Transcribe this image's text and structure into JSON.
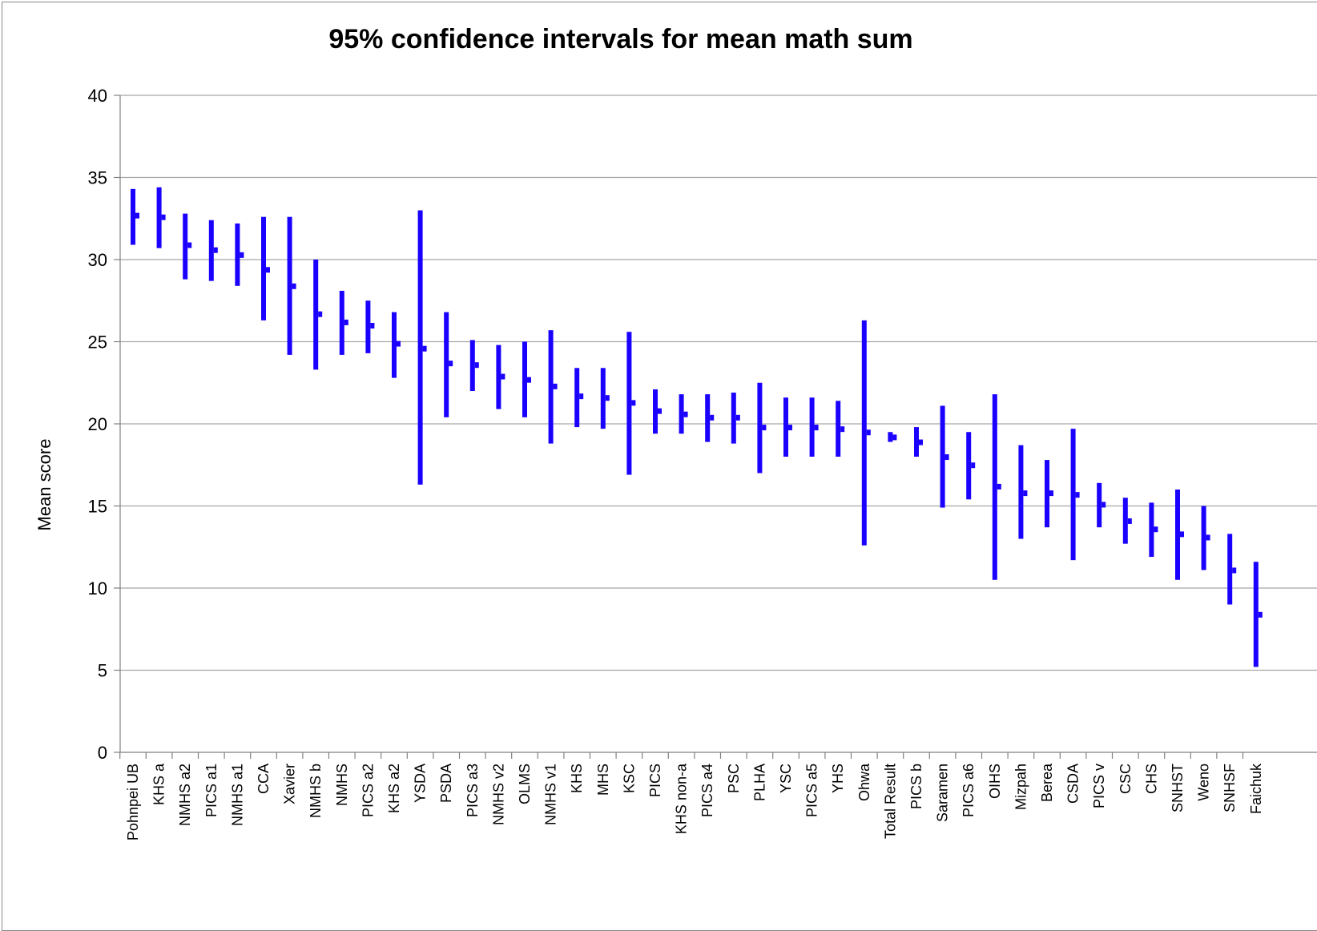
{
  "chart_data": {
    "type": "errorbar",
    "title": "95% confidence intervals for mean math sum",
    "ylabel": "Mean score",
    "xlabel": "",
    "ylim": [
      0,
      40
    ],
    "yticks": [
      0,
      5,
      10,
      15,
      20,
      25,
      30,
      35,
      40
    ],
    "grid": true,
    "legend": "none",
    "color": "#1a00ff",
    "categories": [
      "Pohnpei UB",
      "KHS a",
      "NMHS a2",
      "PICS a1",
      "NMHS a1",
      "CCA",
      "Xavier",
      "NMHS b",
      "NMHS",
      "PICS a2",
      "KHS a2",
      "YSDA",
      "PSDA",
      "PICS a3",
      "NMHS v2",
      "OLMS",
      "NMHS v1",
      "KHS",
      "MHS",
      "KSC",
      "PICS",
      "KHS non-a",
      "PICS a4",
      "PSC",
      "PLHA",
      "YSC",
      "PICS a5",
      "YHS",
      "Ohwa",
      "Total Result",
      "PICS b",
      "Saramen",
      "PICS a6",
      "OIHS",
      "Mizpah",
      "Berea",
      "CSDA",
      "PICS v",
      "CSC",
      "CHS",
      "SNHST",
      "Weno",
      "SNHSF",
      "Faichuk"
    ],
    "series": [
      {
        "stat": "upper",
        "values": [
          34.3,
          34.4,
          32.8,
          32.4,
          32.2,
          32.6,
          32.6,
          30.0,
          28.1,
          27.5,
          26.8,
          33.0,
          26.8,
          25.1,
          24.8,
          25.0,
          25.7,
          23.4,
          23.4,
          25.6,
          22.1,
          21.8,
          21.8,
          21.9,
          22.5,
          21.6,
          21.6,
          21.4,
          26.3,
          19.5,
          19.8,
          21.1,
          19.5,
          21.8,
          18.7,
          17.8,
          19.7,
          16.4,
          15.5,
          15.2,
          16.0,
          15.0,
          13.3,
          11.6
        ]
      },
      {
        "stat": "mean",
        "values": [
          32.7,
          32.6,
          30.9,
          30.6,
          30.3,
          29.4,
          28.4,
          26.7,
          26.2,
          26.0,
          24.9,
          24.6,
          23.7,
          23.6,
          22.9,
          22.7,
          22.3,
          21.7,
          21.6,
          21.3,
          20.8,
          20.6,
          20.4,
          20.4,
          19.8,
          19.8,
          19.8,
          19.7,
          19.5,
          19.2,
          18.9,
          18.0,
          17.5,
          16.2,
          15.8,
          15.8,
          15.7,
          15.1,
          14.1,
          13.6,
          13.3,
          13.1,
          11.1,
          8.4
        ]
      },
      {
        "stat": "lower",
        "values": [
          30.9,
          30.7,
          28.8,
          28.7,
          28.4,
          26.3,
          24.2,
          23.3,
          24.2,
          24.3,
          22.8,
          16.3,
          20.4,
          22.0,
          20.9,
          20.4,
          18.8,
          19.8,
          19.7,
          16.9,
          19.4,
          19.4,
          18.9,
          18.8,
          17.0,
          18.0,
          18.0,
          18.0,
          12.6,
          18.9,
          18.0,
          14.9,
          15.4,
          10.5,
          13.0,
          13.7,
          11.7,
          13.7,
          12.7,
          11.9,
          10.5,
          11.1,
          9.0,
          5.2
        ]
      }
    ]
  }
}
